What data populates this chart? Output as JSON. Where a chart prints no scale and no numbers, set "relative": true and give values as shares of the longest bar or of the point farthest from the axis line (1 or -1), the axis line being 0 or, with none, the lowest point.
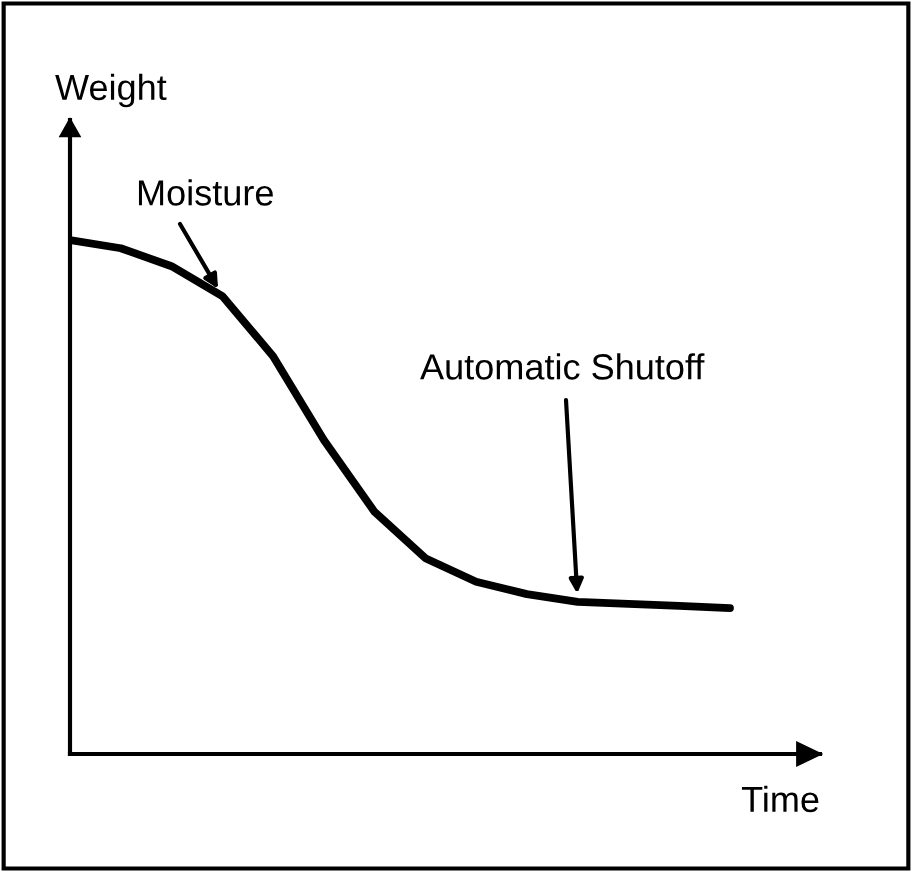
{
  "chart_data": {
    "type": "line",
    "relative": true,
    "xlabel": "Time",
    "ylabel": "Weight",
    "categories": [
      null,
      null,
      null,
      null,
      null,
      null,
      null,
      null,
      null,
      null,
      null,
      null,
      null,
      null
    ],
    "series": [
      {
        "color": "#000000",
        "values": [
          1.0,
          0.984,
          0.949,
          0.891,
          0.774,
          0.611,
          0.471,
          0.381,
          0.335,
          0.311,
          0.296,
          0.292,
          0.288,
          0.284
        ]
      }
    ],
    "annotations": [
      "Moisture",
      "Automatic Shutoff"
    ],
    "marker": "none",
    "line_style": "solid"
  }
}
